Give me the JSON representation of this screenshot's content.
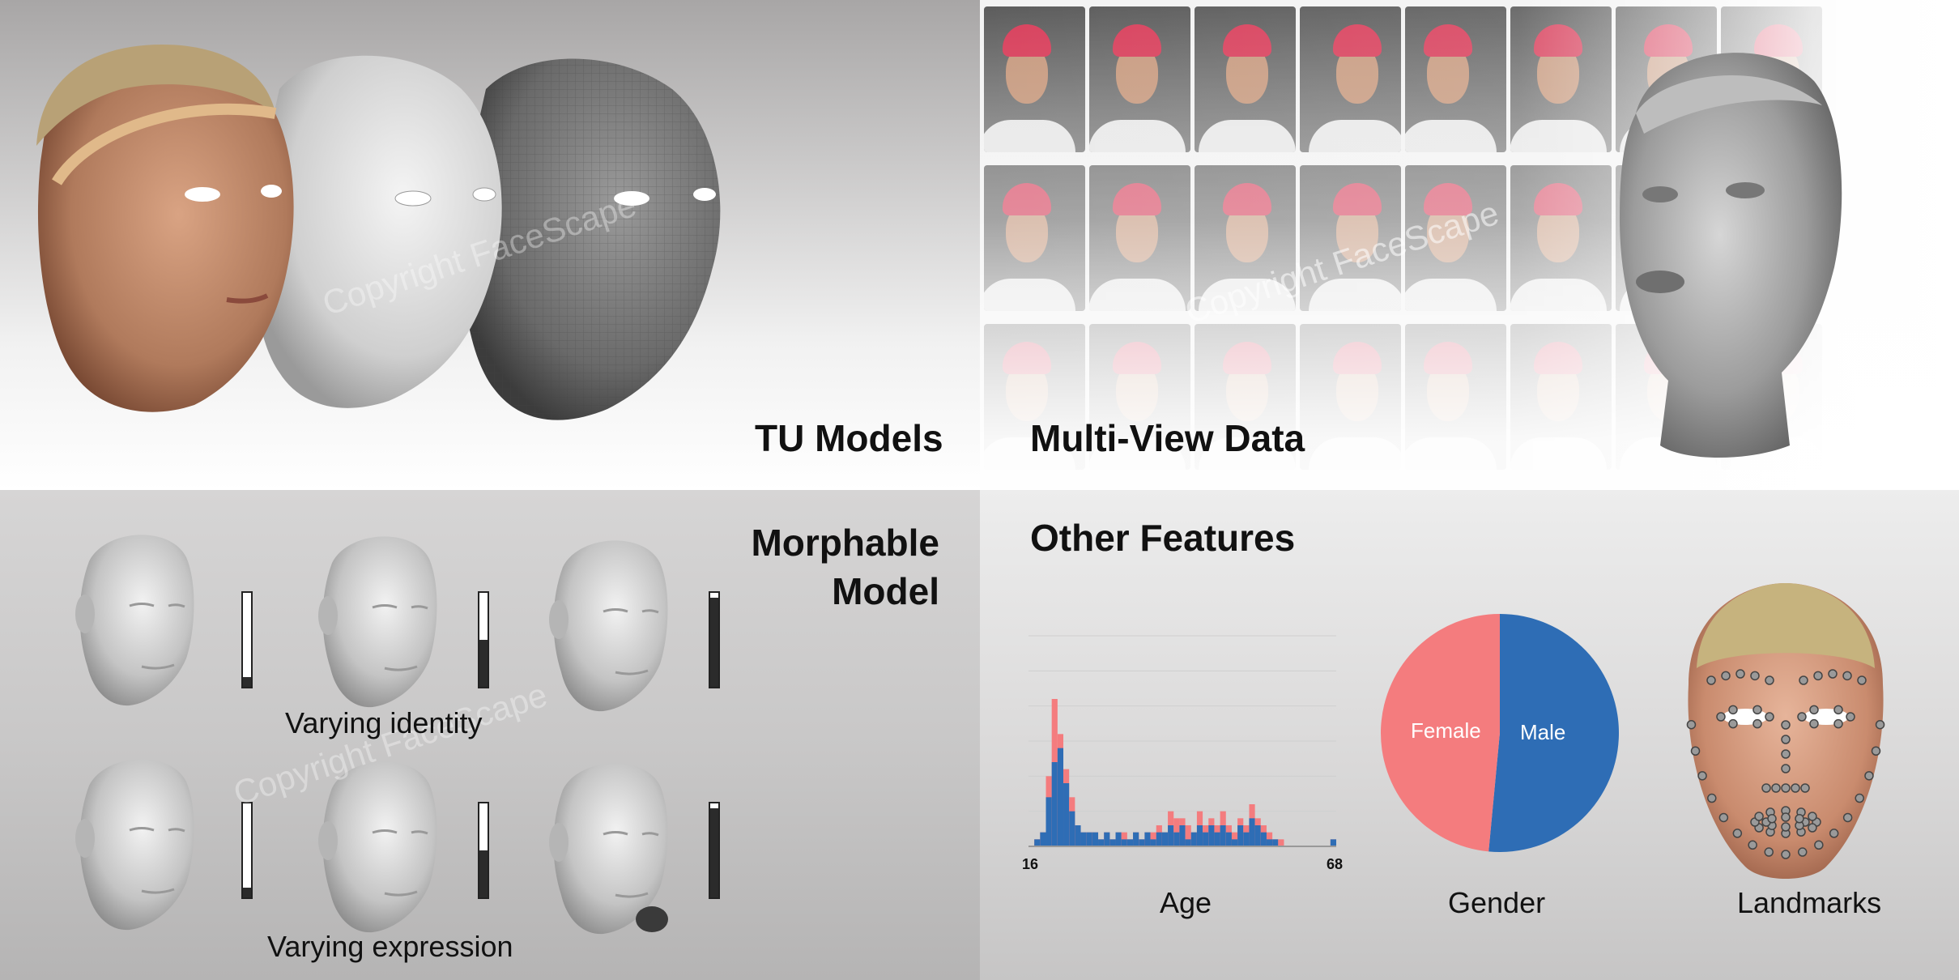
{
  "panels": {
    "tu_models": {
      "title": "TU Models",
      "watermark": "Copyright FaceScape"
    },
    "multi_view": {
      "title": "Multi-View Data",
      "watermark": "Copyright FaceScape"
    },
    "morphable": {
      "title_line1": "Morphable",
      "title_line2": "Model",
      "caption_identity": "Varying identity",
      "caption_expression": "Varying expression",
      "watermark": "Copyright FaceScape",
      "identity_levels": [
        0.1,
        0.5,
        0.95
      ],
      "expression_levels": [
        0.1,
        0.5,
        0.95
      ]
    },
    "other": {
      "title": "Other Features",
      "age_caption": "Age",
      "gender_caption": "Gender",
      "landmarks_caption": "Landmarks"
    }
  },
  "chart_data": [
    {
      "type": "bar",
      "title": "",
      "xlabel": "Age",
      "ylabel": "",
      "x_tick_labels": [
        "16",
        "68"
      ],
      "xlim": [
        16,
        68
      ],
      "ylim": [
        0,
        30
      ],
      "categories": [
        16,
        17,
        18,
        19,
        20,
        21,
        22,
        23,
        24,
        25,
        26,
        27,
        28,
        29,
        30,
        31,
        32,
        33,
        34,
        35,
        36,
        37,
        38,
        39,
        40,
        41,
        42,
        43,
        44,
        45,
        46,
        47,
        48,
        49,
        50,
        51,
        52,
        53,
        54,
        55,
        56,
        57,
        58,
        59,
        60,
        61,
        62,
        63,
        64,
        65,
        66,
        67,
        68
      ],
      "series": [
        {
          "name": "Male",
          "color": "#2e6db5",
          "values": [
            0,
            1,
            2,
            7,
            12,
            14,
            9,
            5,
            3,
            2,
            2,
            2,
            1,
            2,
            1,
            2,
            1,
            1,
            2,
            1,
            2,
            1,
            2,
            2,
            3,
            2,
            3,
            1,
            2,
            3,
            2,
            3,
            2,
            3,
            2,
            1,
            3,
            2,
            4,
            3,
            2,
            1,
            1,
            0,
            0,
            0,
            0,
            0,
            0,
            0,
            0,
            0,
            1
          ]
        },
        {
          "name": "Female",
          "color": "#f47c7e",
          "values": [
            0,
            1,
            2,
            10,
            21,
            16,
            11,
            7,
            3,
            2,
            2,
            2,
            1,
            2,
            1,
            2,
            2,
            1,
            2,
            1,
            2,
            2,
            3,
            2,
            5,
            4,
            4,
            3,
            2,
            5,
            3,
            4,
            3,
            5,
            3,
            2,
            4,
            3,
            6,
            4,
            3,
            2,
            1,
            1,
            0,
            0,
            0,
            0,
            0,
            0,
            0,
            0,
            1
          ]
        }
      ]
    },
    {
      "type": "pie",
      "title": "",
      "xlabel": "Gender",
      "categories": [
        "Female",
        "Male"
      ],
      "values": [
        48.5,
        51.5
      ],
      "colors": [
        "#f47c7e",
        "#2e6db5"
      ]
    }
  ]
}
